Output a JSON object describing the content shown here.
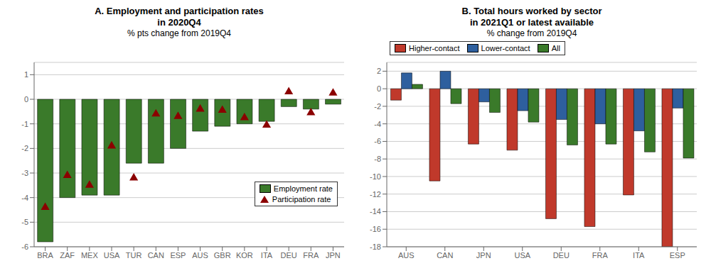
{
  "chart_data": [
    {
      "type": "bar",
      "title": "A. Employment and participation rates\nin 2020Q4",
      "subtitle": "% pts change from 2019Q4",
      "categories": [
        "BRA",
        "ZAF",
        "MEX",
        "USA",
        "TUR",
        "CAN",
        "ESP",
        "AUS",
        "GBR",
        "KOR",
        "ITA",
        "DEU",
        "FRA",
        "JPN"
      ],
      "series": [
        {
          "name": "Employment rate",
          "type": "bar",
          "color": "#3a7a2a",
          "values": [
            -5.8,
            -4.0,
            -3.9,
            -3.9,
            -2.6,
            -2.6,
            -2.0,
            -1.3,
            -1.1,
            -1.0,
            -0.9,
            -0.3,
            -0.4,
            -0.2
          ]
        },
        {
          "name": "Participation rate",
          "type": "scatter",
          "marker": "triangle",
          "color": "#8b0000",
          "values": [
            -4.4,
            -3.1,
            -3.5,
            -1.9,
            -3.2,
            -0.6,
            -0.7,
            -0.4,
            -0.45,
            -0.75,
            -1.05,
            0.3,
            -0.55,
            0.25
          ]
        }
      ],
      "ylim": [
        -6,
        1.5
      ],
      "yticks": [
        -6,
        -5,
        -4,
        -3,
        -2,
        -1,
        0,
        1
      ],
      "grid": true,
      "legend": "lower right"
    },
    {
      "type": "bar",
      "title": "B. Total hours worked by sector\nin 2021Q1 or latest available",
      "subtitle": "% change from 2019Q4",
      "categories": [
        "AUS",
        "CAN",
        "JPN",
        "USA",
        "DEU",
        "FRA",
        "ITA",
        "ESP"
      ],
      "series": [
        {
          "name": "Higher-contact",
          "type": "bar",
          "color": "#c0392b",
          "values": [
            -1.3,
            -10.5,
            -6.3,
            -7.0,
            -14.8,
            -15.7,
            -12.1,
            -18.0
          ]
        },
        {
          "name": "Lower-contact",
          "type": "bar",
          "color": "#2e5f9e",
          "values": [
            1.8,
            2.0,
            -1.5,
            -2.5,
            -3.5,
            -4.0,
            -4.8,
            -2.2
          ]
        },
        {
          "name": "All",
          "type": "bar",
          "color": "#3a7a2a",
          "values": [
            0.5,
            -1.7,
            -2.7,
            -3.8,
            -6.4,
            -6.3,
            -7.2,
            -7.9
          ]
        }
      ],
      "ylim": [
        -18,
        3
      ],
      "yticks": [
        -18,
        -16,
        -14,
        -12,
        -10,
        -8,
        -6,
        -4,
        -2,
        0,
        2
      ],
      "grid": true,
      "legend": "upper left"
    }
  ]
}
